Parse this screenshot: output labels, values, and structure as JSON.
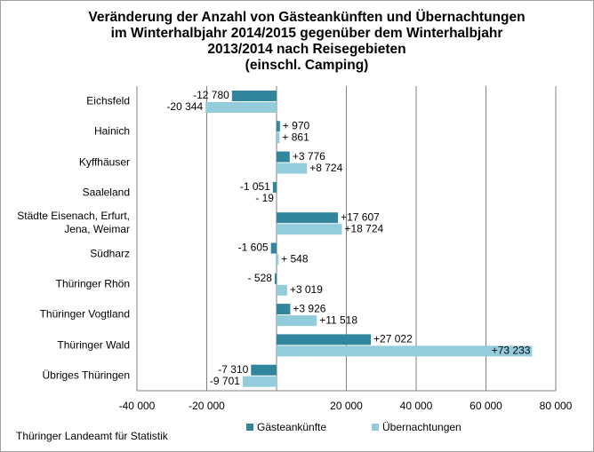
{
  "chart_data": {
    "type": "hbar",
    "title": [
      "Veränderung der Anzahl von Gästeankünften und Übernachtungen",
      "im Winterhalbjahr 2014/2015 gegenüber dem Winterhalbjahr",
      "2013/2014 nach Reisegebieten",
      "(einschl. Camping)"
    ],
    "categories": [
      "Eichsfeld",
      "Hainich",
      "Kyffhäuser",
      "Saaleland",
      "Städte Eisenach, Erfurt, Jena, Weimar",
      "Südharz",
      "Thüringer Rhön",
      "Thüringer Vogtland",
      "Thüringer Wald",
      "Übriges Thüringen"
    ],
    "series": [
      {
        "name": "Gästeankünfte",
        "color": "#31859c",
        "values": [
          -12780,
          970,
          3776,
          -1051,
          17607,
          -1605,
          -528,
          3926,
          27022,
          -7310
        ],
        "value_labels": [
          "-12 780",
          "+ 970",
          "+3 776",
          "-1 051",
          "+17 607",
          "-1 605",
          "- 528",
          "+3 926",
          "+27 022",
          "-7 310"
        ]
      },
      {
        "name": "Übernachtungen",
        "color": "#93cddd",
        "values": [
          -20344,
          861,
          8724,
          -19,
          18724,
          548,
          3019,
          11518,
          73233,
          -9701
        ],
        "value_labels": [
          "-20 344",
          "+ 861",
          "+8 724",
          "- 19",
          "+18 724",
          "+ 548",
          "+3 019",
          "+11 518",
          "+73 233",
          "-9 701"
        ]
      }
    ],
    "xlim": [
      -40000,
      80000
    ],
    "xticks": [
      {
        "value": -40000,
        "label": "-40 000"
      },
      {
        "value": -20000,
        "label": "-20 000"
      },
      {
        "value": 20000,
        "label": "20 000"
      },
      {
        "value": 40000,
        "label": "40 000"
      },
      {
        "value": 60000,
        "label": "60 000"
      },
      {
        "value": 80000,
        "label": "80 000"
      }
    ],
    "grid": true,
    "source": "Thüringer Landeamt für Statistik"
  }
}
